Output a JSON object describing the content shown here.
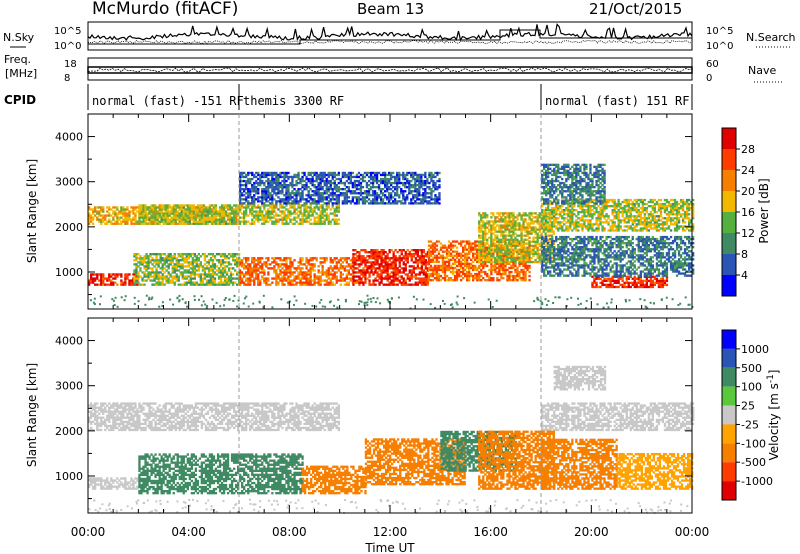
{
  "header": {
    "station": "McMurdo (fitACF)",
    "beam": "Beam 13",
    "date": "21/Oct/2015"
  },
  "noise_panel": {
    "left_label": "N.Sky",
    "right_label": "N.Search",
    "left_ticks": [
      "10^5",
      "10^0"
    ],
    "right_ticks": [
      "10^5",
      "10^0"
    ]
  },
  "freq_panel": {
    "left_label_1": "Freq.",
    "left_label_2": "[MHz]",
    "right_label": "Nave",
    "left_ticks": [
      "18",
      "8"
    ],
    "right_ticks": [
      "60",
      "0"
    ]
  },
  "cpid": {
    "label": "CPID",
    "segments": [
      {
        "text": "normal (fast) -151 RF",
        "start_hour": 0,
        "end_hour": 6
      },
      {
        "text": "themis 3300 RF",
        "start_hour": 6,
        "end_hour": 18
      },
      {
        "text": "normal (fast) 151 RF",
        "start_hour": 18,
        "end_hour": 24
      }
    ]
  },
  "colors": {
    "power_scale": [
      "#0000ff",
      "#2a55b4",
      "#3f8a62",
      "#56b040",
      "#f2b800",
      "#f77f00",
      "#ff3c00",
      "#e00000"
    ],
    "velocity_scale": [
      "#e00000",
      "#ff3c00",
      "#f77f00",
      "#ffa300",
      "#c8c8c8",
      "#5ac83c",
      "#3f8a62",
      "#2a55b4",
      "#0000ff"
    ]
  },
  "chart_data": [
    {
      "type": "heatmap",
      "name": "power",
      "xlabel": "Time UT",
      "ylabel": "Slant Range [km]",
      "xlim": [
        0,
        24
      ],
      "ylim": [
        180,
        4500
      ],
      "x_ticks": [
        "00:00",
        "04:00",
        "08:00",
        "12:00",
        "16:00",
        "20:00",
        "00:00"
      ],
      "y_ticks": [
        1000,
        2000,
        3000,
        4000
      ],
      "colorbar": {
        "label": "Power [dB]",
        "ticks": [
          "4",
          "8",
          "12",
          "16",
          "20",
          "24",
          "28"
        ],
        "range": [
          0,
          30
        ]
      },
      "bands": [
        {
          "t0": 0.0,
          "t1": 6.0,
          "r0": 2050,
          "r1": 2450,
          "value": 18
        },
        {
          "t0": 2.0,
          "t1": 10.0,
          "r0": 2050,
          "r1": 2500,
          "value": 15
        },
        {
          "t0": 0.0,
          "t1": 2.0,
          "r0": 700,
          "r1": 950,
          "value": 26
        },
        {
          "t0": 1.8,
          "t1": 6.0,
          "r0": 700,
          "r1": 1400,
          "value": 14
        },
        {
          "t0": 6.0,
          "t1": 10.5,
          "r0": 700,
          "r1": 1300,
          "value": 22
        },
        {
          "t0": 10.5,
          "t1": 13.5,
          "r0": 700,
          "r1": 1500,
          "value": 26
        },
        {
          "t0": 13.5,
          "t1": 17.5,
          "r0": 800,
          "r1": 1700,
          "value": 22
        },
        {
          "t0": 15.5,
          "t1": 18.5,
          "r0": 1200,
          "r1": 2300,
          "value": 16
        },
        {
          "t0": 18.0,
          "t1": 24.0,
          "r0": 1900,
          "r1": 2600,
          "value": 15
        },
        {
          "t0": 18.0,
          "t1": 20.5,
          "r0": 2500,
          "r1": 3400,
          "value": 8
        },
        {
          "t0": 20.0,
          "t1": 23.0,
          "r0": 650,
          "r1": 900,
          "value": 26
        },
        {
          "t0": 18.0,
          "t1": 24.0,
          "r0": 900,
          "r1": 1800,
          "value": 8
        },
        {
          "t0": 6.0,
          "t1": 14.0,
          "r0": 2500,
          "r1": 3200,
          "value": 6
        }
      ]
    },
    {
      "type": "heatmap",
      "name": "velocity",
      "xlabel": "Time UT",
      "ylabel": "Slant Range [km]",
      "xlim": [
        0,
        24
      ],
      "ylim": [
        180,
        4500
      ],
      "x_ticks": [
        "00:00",
        "04:00",
        "08:00",
        "12:00",
        "16:00",
        "20:00",
        "00:00"
      ],
      "y_ticks": [
        1000,
        2000,
        3000,
        4000
      ],
      "colorbar": {
        "label": "Velocity [m s^-1]",
        "ticks": [
          "1000",
          "500",
          "100",
          "25",
          "-25",
          "-100",
          "-500",
          "-1000"
        ]
      },
      "bands": [
        {
          "t0": 0.0,
          "t1": 10.0,
          "r0": 2000,
          "r1": 2600,
          "value": 0
        },
        {
          "t0": 18.0,
          "t1": 24.0,
          "r0": 2000,
          "r1": 2600,
          "value": 0
        },
        {
          "t0": 18.5,
          "t1": 20.5,
          "r0": 2900,
          "r1": 3400,
          "value": 0
        },
        {
          "t0": 0.0,
          "t1": 2.0,
          "r0": 700,
          "r1": 950,
          "value": 10
        },
        {
          "t0": 2.0,
          "t1": 8.5,
          "r0": 600,
          "r1": 1500,
          "value": 300
        },
        {
          "t0": 8.5,
          "t1": 11.0,
          "r0": 600,
          "r1": 1200,
          "value": -200
        },
        {
          "t0": 11.0,
          "t1": 15.0,
          "r0": 800,
          "r1": 1800,
          "value": -300
        },
        {
          "t0": 14.0,
          "t1": 17.0,
          "r0": 1100,
          "r1": 2000,
          "value": 300
        },
        {
          "t0": 15.5,
          "t1": 18.5,
          "r0": 700,
          "r1": 2000,
          "value": -300
        },
        {
          "t0": 18.0,
          "t1": 21.0,
          "r0": 700,
          "r1": 1800,
          "value": -150
        },
        {
          "t0": 21.0,
          "t1": 24.0,
          "r0": 700,
          "r1": 1500,
          "value": -60
        }
      ]
    }
  ]
}
